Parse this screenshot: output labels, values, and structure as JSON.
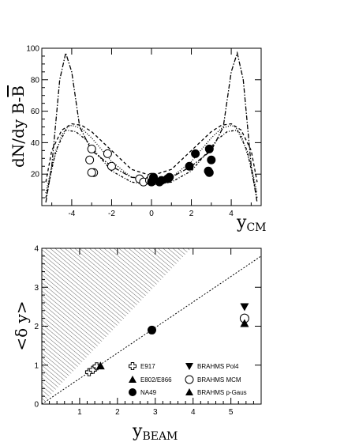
{
  "chart_data": [
    {
      "type": "scatter",
      "title": "",
      "ylabel_main": "dN/dy B-",
      "ylabel_bar": "B",
      "xlabel_main": "y",
      "xlabel_sub": "CM",
      "xlim": [
        -5.5,
        5.5
      ],
      "ylim": [
        0,
        100
      ],
      "xticks": [
        -4,
        -2,
        0,
        2,
        4
      ],
      "yticks": [
        20,
        40,
        60,
        80,
        100
      ],
      "xtick_labels": [
        "-4",
        "-2",
        "0",
        "2",
        "4"
      ],
      "ytick_labels": [
        "20",
        "40",
        "60",
        "80",
        "100"
      ],
      "series": [
        {
          "style": "open-circle",
          "values": [
            [
              -3.0,
              36
            ],
            [
              -3.1,
              29
            ],
            [
              -2.9,
              21
            ],
            [
              -3.0,
              21
            ],
            [
              -2.2,
              33
            ],
            [
              -2.0,
              25
            ],
            [
              -0.6,
              17
            ],
            [
              -0.4,
              15
            ],
            [
              -0.1,
              16
            ],
            [
              0.0,
              18
            ]
          ]
        },
        {
          "style": "filled-circle",
          "values": [
            [
              0.0,
              15
            ],
            [
              0.1,
              18
            ],
            [
              0.4,
              15
            ],
            [
              0.5,
              16
            ],
            [
              0.8,
              17
            ],
            [
              0.9,
              18
            ],
            [
              1.9,
              25
            ],
            [
              2.2,
              33
            ],
            [
              2.9,
              21
            ],
            [
              2.85,
              22
            ],
            [
              3.0,
              29
            ],
            [
              2.9,
              36
            ]
          ]
        }
      ],
      "curves": [
        {
          "style": "dash-dot",
          "x": [
            -5.3,
            -5.0,
            -4.6,
            -4.3,
            -4.0,
            -3.6,
            -3.0,
            -2.5,
            -2.0,
            -1.0,
            0.0,
            1.0,
            2.0,
            2.5,
            3.0,
            3.6,
            4.0,
            4.3,
            4.6,
            5.0,
            5.3
          ],
          "y": [
            2,
            25,
            80,
            97,
            85,
            50,
            35,
            30,
            25,
            18,
            17,
            18,
            25,
            30,
            35,
            50,
            85,
            97,
            80,
            25,
            2
          ]
        },
        {
          "style": "dashed",
          "x": [
            -5.3,
            -5.0,
            -4.5,
            -4.0,
            -3.5,
            -3.0,
            -2.0,
            -1.0,
            0.0,
            1.0,
            2.0,
            3.0,
            3.5,
            4.0,
            4.5,
            5.0,
            5.3
          ],
          "y": [
            15,
            35,
            48,
            52,
            51,
            47,
            35,
            23,
            19,
            23,
            35,
            47,
            51,
            52,
            48,
            35,
            15
          ]
        },
        {
          "style": "dotted",
          "x": [
            -5.3,
            -5.0,
            -4.5,
            -4.2,
            -4.0,
            -3.5,
            -3.0,
            -2.0,
            -1.0,
            0.0,
            1.0,
            2.0,
            3.0,
            3.5,
            4.0,
            4.2,
            4.5,
            5.0,
            5.3
          ],
          "y": [
            8,
            25,
            45,
            50,
            51,
            49,
            43,
            28,
            18,
            16,
            18,
            28,
            43,
            49,
            51,
            50,
            45,
            25,
            8
          ]
        },
        {
          "style": "dash-dot-fine",
          "x": [
            -5.3,
            -4.8,
            -4.3,
            -3.8,
            -3.3,
            -2.8,
            -2.0,
            -1.0,
            0.0,
            1.0,
            2.0,
            2.8,
            3.3,
            3.8,
            4.3,
            4.8,
            5.3
          ],
          "y": [
            5,
            35,
            48,
            47,
            42,
            34,
            22,
            15,
            13,
            15,
            22,
            34,
            42,
            47,
            48,
            35,
            5
          ]
        }
      ]
    },
    {
      "type": "scatter",
      "title": "",
      "ylabel": "<δ y>",
      "xlabel_main": "y",
      "xlabel_sub": "BEAM",
      "xlim": [
        0,
        5.8
      ],
      "ylim": [
        0,
        4
      ],
      "xticks": [
        1,
        2,
        3,
        4,
        5
      ],
      "yticks": [
        0,
        1,
        2,
        3,
        4
      ],
      "xtick_labels": [
        "1",
        "2",
        "3",
        "4",
        "5"
      ],
      "ytick_labels": [
        "0",
        "1",
        "2",
        "3",
        "4"
      ],
      "excluded_region": {
        "description_points": [
          [
            0,
            0
          ],
          [
            0,
            4
          ],
          [
            3.95,
            4
          ]
        ]
      },
      "reference_line": {
        "x": [
          0,
          5.8
        ],
        "y": [
          0,
          3.8
        ]
      },
      "series": [
        {
          "name": "E917",
          "marker": "open-cross",
          "values": [
            [
              1.25,
              0.82
            ],
            [
              1.35,
              0.88
            ],
            [
              1.45,
              0.97
            ]
          ]
        },
        {
          "name": "E802/E866",
          "marker": "filled-triangle-up",
          "values": [
            [
              1.55,
              0.98
            ]
          ]
        },
        {
          "name": "NA49",
          "marker": "filled-circle",
          "values": [
            [
              2.91,
              1.9
            ]
          ]
        },
        {
          "name": "BRAHMS Pol4",
          "marker": "filled-triangle-down",
          "values": [
            [
              5.36,
              2.5
            ]
          ]
        },
        {
          "name": "BRAHMS MCM",
          "marker": "open-circle",
          "values": [
            [
              5.36,
              2.2
            ]
          ]
        },
        {
          "name": "BRAHMS p-Gaus",
          "marker": "filled-triangle-up",
          "values": [
            [
              5.36,
              2.07
            ]
          ]
        }
      ],
      "legend": {
        "placement": "bottom-right"
      }
    }
  ]
}
